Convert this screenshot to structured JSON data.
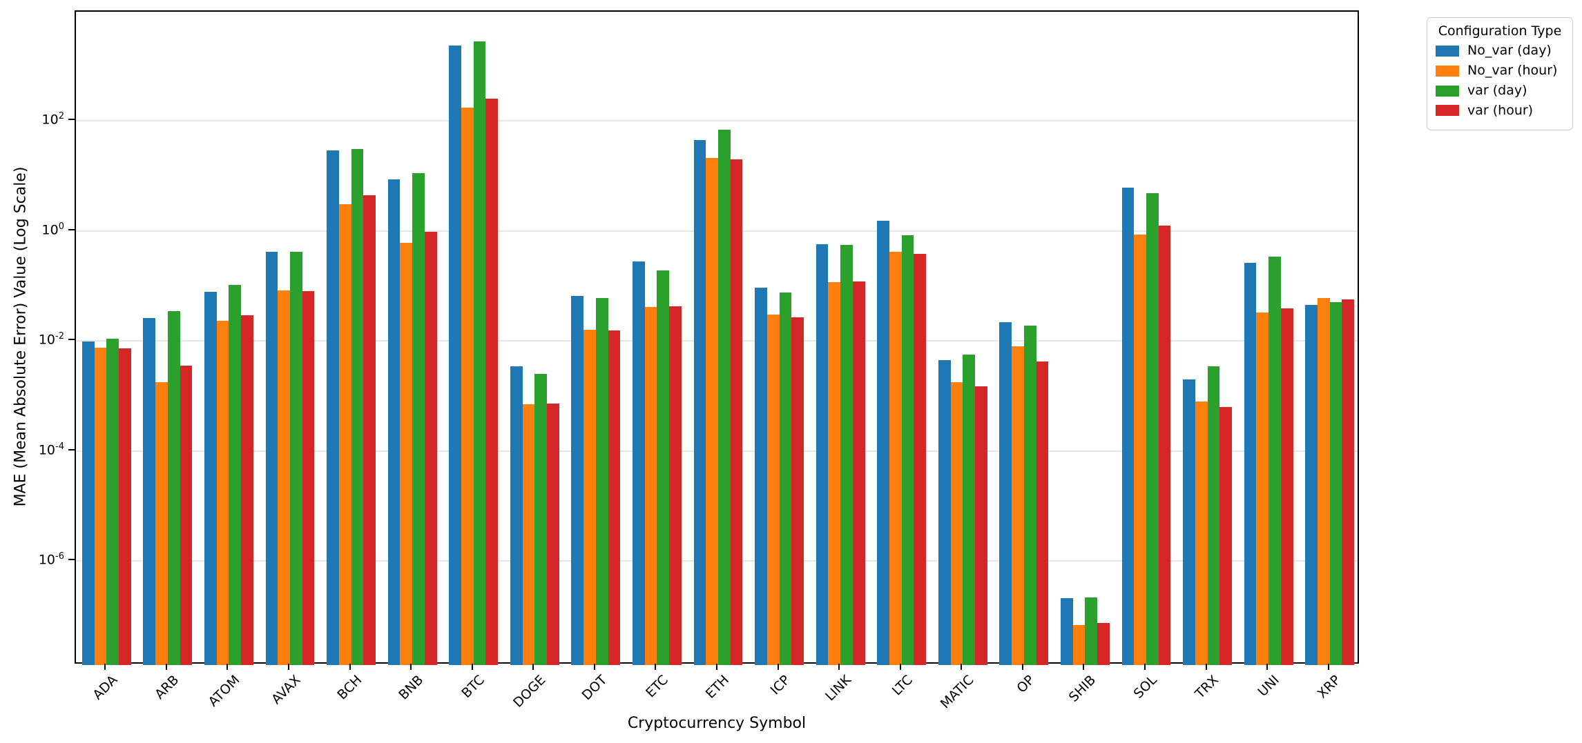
{
  "chart_data": {
    "type": "bar",
    "title": "",
    "xlabel": "Cryptocurrency Symbol",
    "ylabel": "MAE (Mean Absolute Error) Value (Log Scale)",
    "legend_title": "Configuration Type",
    "legend_position": "outside-upper-right",
    "y_scale": "log",
    "y_tick_exponents": [
      2,
      0,
      -2,
      -4,
      -6
    ],
    "y_log_min": -7.89,
    "y_log_max": 3.98,
    "grid": "horizontal",
    "background_color": "#ffffff",
    "gridline_color": "#e6e6e6",
    "categories": [
      "ADA",
      "ARB",
      "ATOM",
      "AVAX",
      "BCH",
      "BNB",
      "BTC",
      "DOGE",
      "DOT",
      "ETC",
      "ETH",
      "ICP",
      "LINK",
      "LTC",
      "MATIC",
      "OP",
      "SHIB",
      "SOL",
      "TRX",
      "UNI",
      "XRP"
    ],
    "series": [
      {
        "name": "No_var (day)",
        "color": "#1f77b4",
        "values": [
          0.0097,
          0.026,
          0.078,
          0.42,
          29,
          8.7,
          2300,
          0.0034,
          0.066,
          0.28,
          45,
          0.092,
          0.57,
          1.5,
          0.0045,
          0.022,
          2.1e-07,
          6.0,
          0.002,
          0.26,
          0.045
        ]
      },
      {
        "name": "No_var (hour)",
        "color": "#ff7f0e",
        "values": [
          0.0076,
          0.0018,
          0.023,
          0.083,
          3.0,
          0.6,
          175,
          0.0007,
          0.016,
          0.041,
          21,
          0.03,
          0.115,
          0.41,
          0.0018,
          0.008,
          6.8e-08,
          0.85,
          0.0008,
          0.033,
          0.06
        ]
      },
      {
        "name": "var (day)",
        "color": "#2ca02c",
        "values": [
          0.0108,
          0.035,
          0.104,
          0.42,
          31,
          11.2,
          2750,
          0.0025,
          0.06,
          0.19,
          68,
          0.076,
          0.55,
          0.84,
          0.0056,
          0.019,
          2.2e-07,
          4.8,
          0.0034,
          0.34,
          0.05
        ]
      },
      {
        "name": "var (hour)",
        "color": "#d62728",
        "values": [
          0.0073,
          0.0035,
          0.029,
          0.079,
          4.4,
          0.95,
          255,
          0.00073,
          0.0155,
          0.043,
          20,
          0.027,
          0.12,
          0.38,
          0.0015,
          0.0042,
          7.6e-08,
          1.25,
          0.00062,
          0.039,
          0.057
        ]
      }
    ]
  }
}
